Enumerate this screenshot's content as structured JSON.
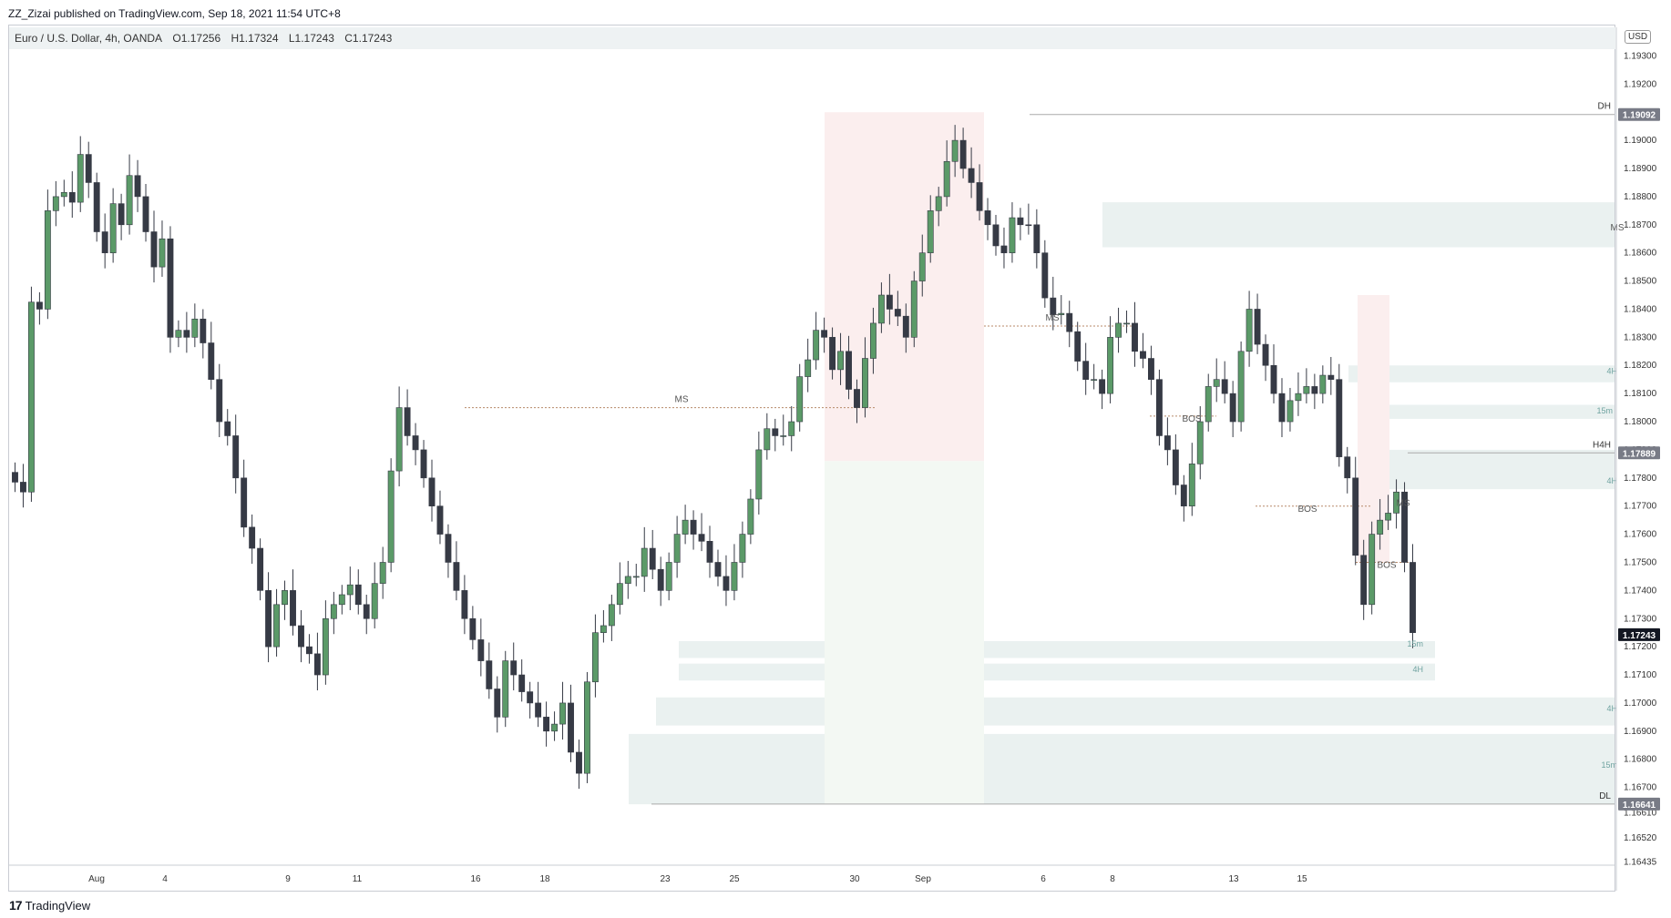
{
  "header": {
    "attribution": "ZZ_Zizai published on TradingView.com, Sep 18, 2021 11:54 UTC+8"
  },
  "legend": {
    "symbol": "Euro / U.S. Dollar, 4h, OANDA",
    "open": "O1.17256",
    "high": "H1.17324",
    "low": "L1.17243",
    "close": "C1.17243"
  },
  "currency": "USD",
  "footer": {
    "brand": "TradingView"
  },
  "colors": {
    "up": "#5b9a68",
    "down": "#363a45",
    "zone": "#eaf1f0",
    "pink_zone": "#fbeeee"
  },
  "chart_data": {
    "type": "candlestick",
    "title": "Euro / U.S. Dollar, 4h, OANDA",
    "ylim": [
      1.1643,
      1.1935
    ],
    "y_ticks": [
      "1.19300",
      "1.19200",
      "1.19100",
      "1.19000",
      "1.18900",
      "1.18800",
      "1.18700",
      "1.18600",
      "1.18500",
      "1.18400",
      "1.18300",
      "1.18200",
      "1.18100",
      "1.18000",
      "1.17900",
      "1.17800",
      "1.17700",
      "1.17600",
      "1.17500",
      "1.17400",
      "1.17300",
      "1.17200",
      "1.17100",
      "1.17000",
      "1.16900",
      "1.16800",
      "1.16700",
      "1.16610",
      "1.16520",
      "1.16435"
    ],
    "x_ticks": [
      "Aug",
      "4",
      "9",
      "11",
      "16",
      "18",
      "23",
      "25",
      "30",
      "Sep",
      "6",
      "8",
      "13",
      "15"
    ],
    "price_labels": [
      {
        "price": "1.19092",
        "label": "DH"
      },
      {
        "price": "1.17889",
        "label": "H4H"
      },
      {
        "price": "1.17243",
        "label": ""
      },
      {
        "price": "1.16641",
        "label": "DL"
      }
    ],
    "path": [
      [
        1.1782,
        1.1775
      ],
      [
        1.1845,
        1.184
      ],
      [
        1.187,
        1.188
      ],
      [
        1.1885,
        1.1878
      ],
      [
        1.1905,
        1.1885
      ],
      [
        1.1875,
        1.186
      ],
      [
        1.1885,
        1.187
      ],
      [
        1.1895,
        1.188
      ],
      [
        1.188,
        1.1855
      ],
      [
        1.19,
        1.183
      ],
      [
        1.1835,
        1.183
      ],
      [
        1.1845,
        1.1828
      ],
      [
        1.183,
        1.18
      ],
      [
        1.181,
        1.178
      ],
      [
        1.177,
        1.1755
      ],
      [
        1.176,
        1.172
      ],
      [
        1.173,
        1.174
      ],
      [
        1.1735,
        1.172
      ],
      [
        1.1725,
        1.171
      ],
      [
        1.1725,
        1.1735
      ],
      [
        1.1735,
        1.1742
      ],
      [
        1.174,
        1.173
      ],
      [
        1.1735,
        1.175
      ],
      [
        1.176,
        1.1805
      ],
      [
        1.18,
        1.179
      ],
      [
        1.179,
        1.177
      ],
      [
        1.177,
        1.175
      ],
      [
        1.175,
        1.173
      ],
      [
        1.173,
        1.1715
      ],
      [
        1.1715,
        1.1695
      ],
      [
        1.172,
        1.171
      ],
      [
        1.1708,
        1.17
      ],
      [
        1.17,
        1.169
      ],
      [
        1.1685,
        1.17
      ],
      [
        1.169,
        1.1675
      ],
      [
        1.169,
        1.1725
      ],
      [
        1.172,
        1.1735
      ],
      [
        1.174,
        1.1745
      ],
      [
        1.1735,
        1.1755
      ],
      [
        1.1755,
        1.174
      ],
      [
        1.174,
        1.176
      ],
      [
        1.177,
        1.176
      ],
      [
        1.1765,
        1.175
      ],
      [
        1.175,
        1.174
      ],
      [
        1.174,
        1.176
      ],
      [
        1.1755,
        1.179
      ],
      [
        1.18,
        1.1795
      ],
      [
        1.179,
        1.18
      ],
      [
        1.181,
        1.1822
      ],
      [
        1.1835,
        1.183
      ],
      [
        1.1812,
        1.1825
      ],
      [
        1.1818,
        1.1805
      ],
      [
        1.181,
        1.1835
      ],
      [
        1.185,
        1.184
      ],
      [
        1.1845,
        1.183
      ],
      [
        1.184,
        1.186
      ],
      [
        1.187,
        1.188
      ],
      [
        1.1885,
        1.19
      ],
      [
        1.1895,
        1.1885
      ],
      [
        1.188,
        1.187
      ],
      [
        1.1865,
        1.186
      ],
      [
        1.1875,
        1.187
      ],
      [
        1.188,
        1.186
      ],
      [
        1.185,
        1.1838
      ],
      [
        1.1845,
        1.1832
      ],
      [
        1.1828,
        1.1815
      ],
      [
        1.182,
        1.181
      ],
      [
        1.1825,
        1.1835
      ],
      [
        1.1845,
        1.1825
      ],
      [
        1.183,
        1.1815
      ],
      [
        1.18,
        1.179
      ],
      [
        1.1785,
        1.177
      ],
      [
        1.177,
        1.18
      ],
      [
        1.181,
        1.1815
      ],
      [
        1.182,
        1.18
      ],
      [
        1.181,
        1.184
      ],
      [
        1.1835,
        1.182
      ],
      [
        1.182,
        1.18
      ],
      [
        1.1805,
        1.181
      ],
      [
        1.1815,
        1.181
      ],
      [
        1.1818,
        1.1815
      ],
      [
        1.1795,
        1.178
      ],
      [
        1.177,
        1.1735
      ],
      [
        1.1755,
        1.1765
      ],
      [
        1.176,
        1.1775
      ],
      [
        1.1775,
        1.1725
      ]
    ],
    "annotations": [
      "MS",
      "MS",
      "MS",
      "BOS",
      "BOS",
      "BOS",
      "MS",
      "4H",
      "4H",
      "15m",
      "4H",
      "15m",
      "15m",
      "4H",
      "4H"
    ]
  }
}
